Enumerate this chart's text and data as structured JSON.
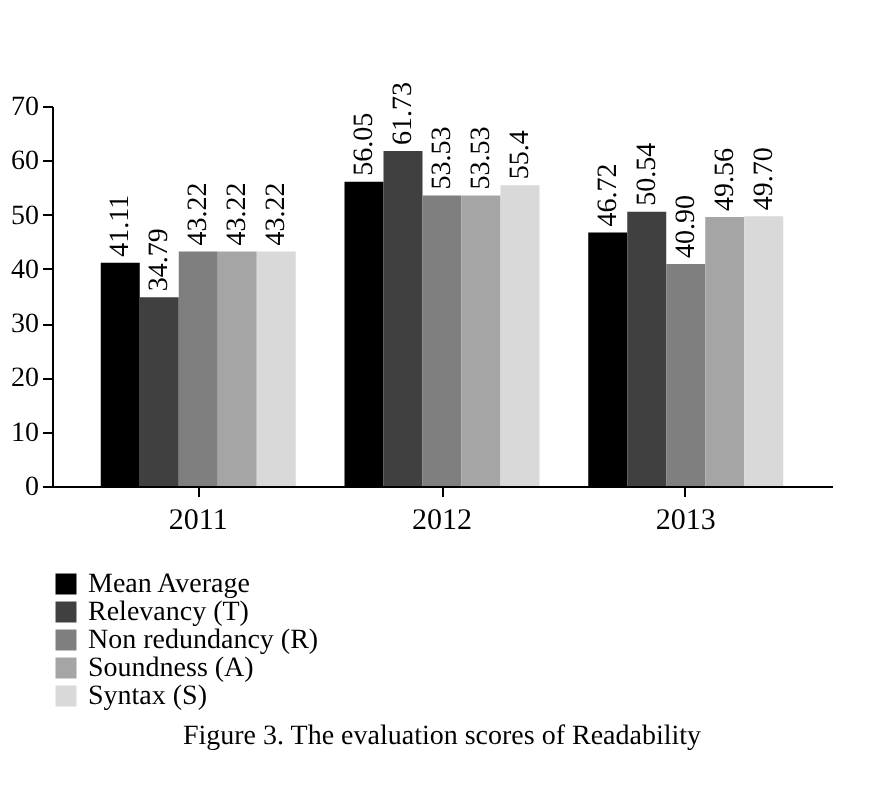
{
  "chart_data": {
    "type": "bar",
    "title": "Figure 3. The evaluation scores of Readability",
    "categories": [
      "2011",
      "2012",
      "2013"
    ],
    "series": [
      {
        "name": "Mean Average",
        "color": "#000000",
        "values": [
          41.11,
          56.05,
          46.72
        ],
        "value_labels": [
          "41.11",
          "56.05",
          "46.72"
        ]
      },
      {
        "name": "Relevancy (T)",
        "color": "#404040",
        "values": [
          34.79,
          61.73,
          50.54
        ],
        "value_labels": [
          "34.79",
          "61.73",
          "50.54"
        ]
      },
      {
        "name": "Non redundancy (R)",
        "color": "#7f7f7f",
        "values": [
          43.22,
          53.53,
          40.9
        ],
        "value_labels": [
          "43.22",
          "53.53",
          "40.90"
        ]
      },
      {
        "name": "Soundness (A)",
        "color": "#a5a5a5",
        "values": [
          43.22,
          53.53,
          49.56
        ],
        "value_labels": [
          "43.22",
          "53.53",
          "49.56"
        ]
      },
      {
        "name": "Syntax (S)",
        "color": "#d9d9d9",
        "values": [
          43.22,
          55.4,
          49.7
        ],
        "value_labels": [
          "43.22",
          "55.4",
          "49.70"
        ]
      }
    ],
    "ylim": [
      0,
      70
    ],
    "yticks": [
      0,
      10,
      20,
      30,
      40,
      50,
      60,
      70
    ],
    "grid": false,
    "legend": "bottom"
  }
}
